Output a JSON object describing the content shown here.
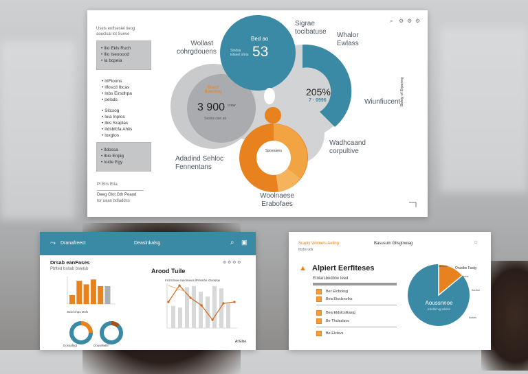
{
  "main_panel": {
    "header": [
      "Usels enlfsesiel tieog",
      "aouclsal lol Sueve"
    ],
    "toolbar_icons": [
      "search-icon",
      "settings-icon",
      "settings-icon",
      "settings-icon"
    ],
    "box1_items": [
      "Ilio Ekls Ruch",
      "Ilio Iseooood",
      "Ia bcpeia"
    ],
    "list1_items": [
      "IrlFtoons",
      "Ilfoscd Ibcas",
      "Inbs Eirsdhpa",
      "pelsds"
    ],
    "list2_items": [
      "Sitcsog",
      "Ieia Inplos",
      "Ibis Sraplas",
      "IIdsbfcfa Ahlis",
      "Ioxgtos"
    ],
    "box2_items": [
      "Ildossa",
      "Ibio Enpig",
      "Ioide Egy"
    ],
    "footer": [
      "Pl Elrs Erla",
      "Deeg Glot Gth Peaod",
      "tor uaan bdladdss"
    ],
    "labels": {
      "left_top": "Wollast cohrgdouens",
      "teal_title": "Bed ao",
      "teal_value": "53",
      "teal_note": "Sindsa lolseet shns",
      "top_right": "Sigrae tocibatuse",
      "far_right": "Whalor Ewlass",
      "pct_value": "205%",
      "pct_sub": "7 · 0996",
      "right_ring": "Wiunfiucent",
      "vertical": "Boleg of Erpenng",
      "orange_tag": "Brand Bolenting",
      "gray_value": "3 900",
      "gray_unit": "crew",
      "gray_note": "Seslos cwn ab",
      "lower_right": "Wadhcaand corpultive",
      "donut_center": "Sposnares",
      "lower_left": "Adadind Sehloc Fennentans",
      "bottom": "Woolnaese Erabofaes"
    },
    "colors": {
      "teal": "#3a8aa6",
      "orange": "#e8821e",
      "light_orange": "#f2a443",
      "gray": "#c9cacc"
    }
  },
  "dash_panel": {
    "brand": "Dranafreect",
    "title": "Deaslnkalsg",
    "section_title": "Drsab eanFases",
    "section_sub": "Pbfted bsltab bslelsb",
    "bar_values": [
      20,
      52,
      44,
      55,
      40,
      40
    ],
    "donut_caption": "Bcld chpo Dsfs",
    "donut_labels": [
      "Dossahlgt",
      "Douselwlifr"
    ],
    "donut_values": [
      0.25,
      0.12
    ],
    "chart_title": "Arood Tuile",
    "chart_sub": "Irrd Edoae Iasomieos lPrlsmbs iOuralsw",
    "line_bars": [
      38,
      35,
      70,
      72,
      62,
      54,
      72,
      68,
      42
    ],
    "line_values": [
      38,
      62,
      44,
      33,
      12,
      36,
      38
    ],
    "footer": "Af Elbe"
  },
  "alert_panel": {
    "top_left": "Srapty Wetnets Aeling",
    "top_left_sub": "Ibsbs uds",
    "top_center": "Basusuln Gllsgtnoiag",
    "title": "Alpiert Eerfiteses",
    "subtitle": "Etnlarsbndbtw Ieed",
    "items": [
      "Ber Elcbcksg",
      "Bea Eisclsncfss",
      "Bea Eldslcslitasig",
      "Be Thcleslsvs",
      "Be Elcisvs"
    ],
    "pie_title": "Aoussnnoe",
    "pie_sub": "Edollsl vg Ielslsn",
    "pie_slice": 0.14,
    "pie_labels": [
      "Iarwlsb",
      "Oruslbs Faslg",
      "Ibelsl",
      "Itaulsa",
      "Iislsbs"
    ]
  }
}
